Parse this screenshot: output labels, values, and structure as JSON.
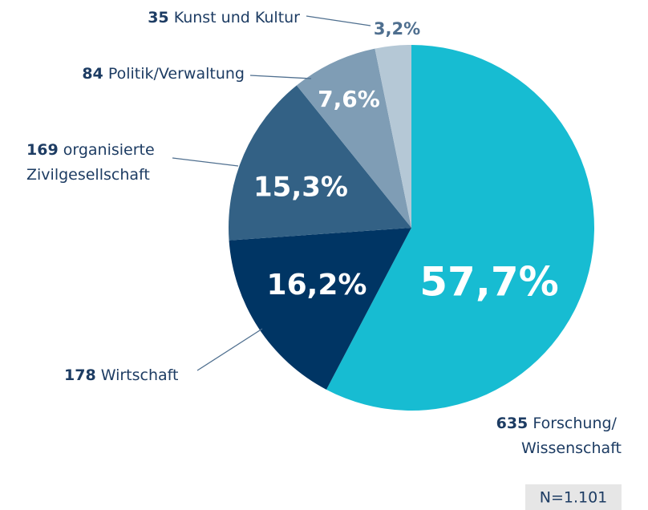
{
  "chart_data": {
    "type": "pie",
    "categories": [
      "Forschung/\nWissenschaft",
      "Wirtschaft",
      "organisierte\nZivilgesellschaft",
      "Politik/Verwaltung",
      "Kunst und Kultur"
    ],
    "counts": [
      635,
      178,
      169,
      84,
      35
    ],
    "values": [
      57.7,
      16.2,
      15.3,
      7.6,
      3.2
    ],
    "value_labels": [
      "57,7%",
      "16,2%",
      "15,3%",
      "7,6%",
      "3,2%"
    ],
    "colors": [
      "#17bcd2",
      "#003564",
      "#336185",
      "#7f9db5",
      "#b5c8d6"
    ],
    "note": "N=1.101"
  }
}
